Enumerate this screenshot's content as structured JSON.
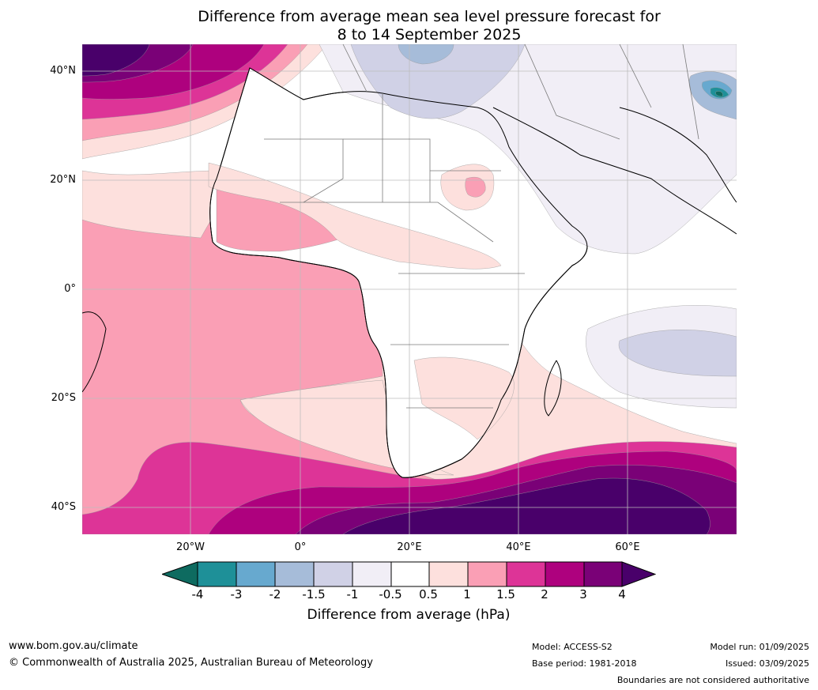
{
  "title": {
    "line1": "Difference from average mean sea level pressure forecast for",
    "line2": "8 to 14 September 2025"
  },
  "map": {
    "lat_labels": [
      "40°N",
      "20°N",
      "0°",
      "20°S",
      "40°S"
    ],
    "lon_labels": [
      "20°W",
      "0°",
      "20°E",
      "40°E",
      "60°E"
    ],
    "colors": {
      "deep_neg": "#0e6b60",
      "neg3": "#1e9098",
      "neg2": "#67a9cf",
      "neg15": "#a6bcd9",
      "neg1": "#d0d1e6",
      "neg05": "#f1eef6",
      "zero": "#ffffff",
      "pos05": "#fde0dd",
      "pos1": "#fa9fb5",
      "pos15": "#dd3497",
      "pos2": "#ae017e",
      "pos3": "#7a0177",
      "pos4": "#49006a"
    }
  },
  "colorbar": {
    "ticks": [
      "-4",
      "-3",
      "-2",
      "-1.5",
      "-1",
      "-0.5",
      "0.5",
      "1",
      "1.5",
      "2",
      "3",
      "4"
    ],
    "label": "Difference from average (hPa)"
  },
  "footer": {
    "website": "www.bom.gov.au/climate",
    "copyright": "© Commonwealth of Australia 2025, Australian Bureau of Meteorology",
    "model": "Model: ACCESS-S2",
    "base_period": "Base period: 1981-2018",
    "model_run": "Model run: 01/09/2025",
    "issued": "Issued: 03/09/2025",
    "boundaries_note": "Boundaries are not considered authoritative"
  }
}
